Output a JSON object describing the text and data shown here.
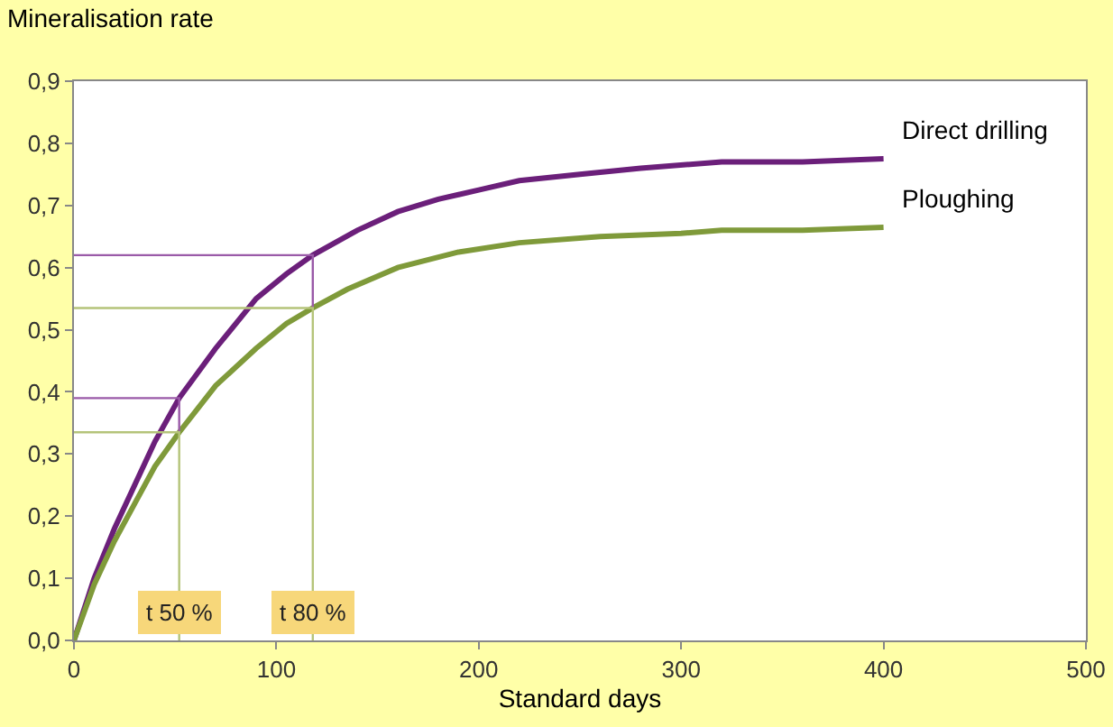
{
  "chart_data": {
    "type": "line",
    "ylabel": "Mineralisation rate",
    "xlabel": "Standard days",
    "xlim": [
      0,
      500
    ],
    "xticks": [
      0,
      100,
      200,
      300,
      400,
      500
    ],
    "ylim": [
      0,
      0.9
    ],
    "yticks": [
      {
        "value": 0,
        "label": "0,0"
      },
      {
        "value": 0.1,
        "label": "0,1"
      },
      {
        "value": 0.2,
        "label": "0,2"
      },
      {
        "value": 0.3,
        "label": "0,3"
      },
      {
        "value": 0.4,
        "label": "0,4"
      },
      {
        "value": 0.5,
        "label": "0,5"
      },
      {
        "value": 0.6,
        "label": "0,6"
      },
      {
        "value": 0.7,
        "label": "0,7"
      },
      {
        "value": 0.8,
        "label": "0,8"
      },
      {
        "value": 0.9,
        "label": "0,9"
      }
    ],
    "grid": false,
    "marker": "none",
    "line_style": "solid",
    "series": [
      {
        "name": "Direct drilling",
        "color": "#6b1f7a",
        "x": [
          0,
          10,
          20,
          30,
          40,
          52,
          70,
          90,
          105,
          118,
          140,
          160,
          180,
          200,
          220,
          250,
          280,
          320,
          360,
          400
        ],
        "values": [
          0,
          0.1,
          0.18,
          0.25,
          0.32,
          0.39,
          0.47,
          0.55,
          0.59,
          0.62,
          0.66,
          0.69,
          0.71,
          0.725,
          0.74,
          0.75,
          0.76,
          0.77,
          0.77,
          0.775
        ]
      },
      {
        "name": "Ploughing",
        "color": "#7f9a3a",
        "x": [
          0,
          10,
          20,
          30,
          40,
          52,
          70,
          90,
          105,
          118,
          135,
          160,
          190,
          220,
          260,
          300,
          320,
          360,
          400
        ],
        "values": [
          0,
          0.09,
          0.16,
          0.22,
          0.28,
          0.335,
          0.41,
          0.47,
          0.51,
          0.535,
          0.565,
          0.6,
          0.625,
          0.64,
          0.65,
          0.655,
          0.66,
          0.66,
          0.665
        ]
      },
      {
        "color": "#9a5aa8",
        "x": [
          0,
          52,
          52
        ],
        "values": [
          0.39,
          0.39,
          0.335
        ]
      },
      {
        "color": "#9a5aa8",
        "x": [
          0,
          118,
          118
        ],
        "values": [
          0.62,
          0.62,
          0.535
        ]
      },
      {
        "color": "#b5c47a",
        "x": [
          0,
          52,
          52
        ],
        "values": [
          0.335,
          0.335,
          0
        ]
      },
      {
        "color": "#b5c47a",
        "x": [
          0,
          118,
          118
        ],
        "values": [
          0.535,
          0.535,
          0
        ]
      }
    ],
    "annotations": [
      {
        "text": "t 50 %",
        "x": 52,
        "y": 0.045
      },
      {
        "text": "t 80 %",
        "x": 118,
        "y": 0.045
      }
    ]
  }
}
